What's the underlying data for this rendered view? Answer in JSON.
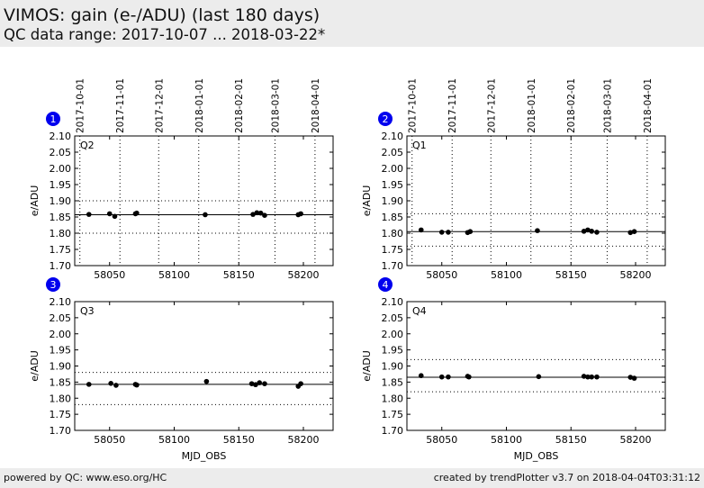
{
  "header": {
    "title": "VIMOS: gain (e-/ADU) (last 180 days)",
    "subtitle": "QC data range: 2017-10-07 ... 2018-03-22*"
  },
  "footer": {
    "left": "powered by QC: www.eso.org/HC",
    "right": "created by trendPlotter v3.7 on 2018-04-04T03:31:12"
  },
  "colors": {
    "badge": "#0000ee",
    "marker": "#000000",
    "grid": "#000000"
  },
  "chart_data": [
    {
      "type": "scatter",
      "badge": "1",
      "label": "Q2",
      "ylabel": "e/ADU",
      "xlabel": "",
      "xlim": [
        58023,
        58223
      ],
      "ylim": [
        1.7,
        2.1
      ],
      "yticks": [
        "1.70",
        "1.75",
        "1.80",
        "1.85",
        "1.90",
        "1.95",
        "2.00",
        "2.05",
        "2.10"
      ],
      "xticks": [
        "58050",
        "58100",
        "58150",
        "58200"
      ],
      "date_ticks": [
        "2017-10-01",
        "2017-11-01",
        "2017-12-01",
        "2018-01-01",
        "2018-02-01",
        "2018-03-01",
        "2018-04-01"
      ],
      "mean": 1.857,
      "limits": [
        1.8,
        1.9
      ],
      "x": [
        58034,
        58050,
        58054,
        58070,
        58071,
        58124,
        58161,
        58164,
        58167,
        58170,
        58196,
        58198
      ],
      "y": [
        1.858,
        1.86,
        1.852,
        1.86,
        1.862,
        1.857,
        1.858,
        1.863,
        1.862,
        1.855,
        1.857,
        1.86
      ]
    },
    {
      "type": "scatter",
      "badge": "2",
      "label": "Q1",
      "ylabel": "e/ADU",
      "xlabel": "",
      "xlim": [
        58023,
        58223
      ],
      "ylim": [
        1.7,
        2.1
      ],
      "yticks": [
        "1.70",
        "1.75",
        "1.80",
        "1.85",
        "1.90",
        "1.95",
        "2.00",
        "2.05",
        "2.10"
      ],
      "xticks": [
        "58050",
        "58100",
        "58150",
        "58200"
      ],
      "date_ticks": [
        "2017-10-01",
        "2017-11-01",
        "2017-12-01",
        "2018-01-01",
        "2018-02-01",
        "2018-03-01",
        "2018-04-01"
      ],
      "mean": 1.805,
      "limits": [
        1.76,
        1.86
      ],
      "x": [
        58034,
        58050,
        58055,
        58070,
        58072,
        58124,
        58160,
        58163,
        58166,
        58170,
        58196,
        58199
      ],
      "y": [
        1.81,
        1.803,
        1.803,
        1.802,
        1.805,
        1.808,
        1.806,
        1.81,
        1.806,
        1.803,
        1.802,
        1.805
      ]
    },
    {
      "type": "scatter",
      "badge": "3",
      "label": "Q3",
      "ylabel": "e/ADU",
      "xlabel": "MJD_OBS",
      "xlim": [
        58023,
        58223
      ],
      "ylim": [
        1.7,
        2.1
      ],
      "yticks": [
        "1.70",
        "1.75",
        "1.80",
        "1.85",
        "1.90",
        "1.95",
        "2.00",
        "2.05",
        "2.10"
      ],
      "xticks": [
        "58050",
        "58100",
        "58150",
        "58200"
      ],
      "date_ticks": [],
      "mean": 1.843,
      "limits": [
        1.78,
        1.88
      ],
      "x": [
        58034,
        58051,
        58055,
        58070,
        58071,
        58125,
        58160,
        58163,
        58166,
        58170,
        58196,
        58198
      ],
      "y": [
        1.843,
        1.846,
        1.84,
        1.843,
        1.841,
        1.852,
        1.845,
        1.842,
        1.848,
        1.845,
        1.837,
        1.845
      ]
    },
    {
      "type": "scatter",
      "badge": "4",
      "label": "Q4",
      "ylabel": "e/ADU",
      "xlabel": "MJD_OBS",
      "xlim": [
        58023,
        58223
      ],
      "ylim": [
        1.7,
        2.1
      ],
      "yticks": [
        "1.70",
        "1.75",
        "1.80",
        "1.85",
        "1.90",
        "1.95",
        "2.00",
        "2.05",
        "2.10"
      ],
      "xticks": [
        "58050",
        "58100",
        "58150",
        "58200"
      ],
      "date_ticks": [],
      "mean": 1.865,
      "limits": [
        1.82,
        1.92
      ],
      "x": [
        58034,
        58050,
        58055,
        58070,
        58071,
        58125,
        58160,
        58163,
        58166,
        58170,
        58196,
        58199
      ],
      "y": [
        1.87,
        1.866,
        1.866,
        1.868,
        1.866,
        1.867,
        1.868,
        1.866,
        1.866,
        1.866,
        1.865,
        1.862
      ]
    }
  ]
}
